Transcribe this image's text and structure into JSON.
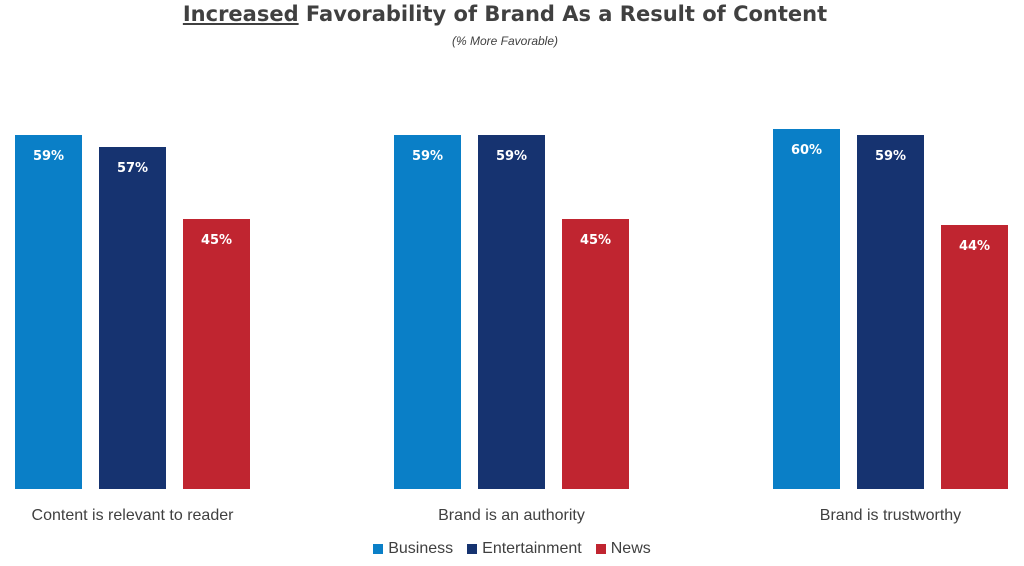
{
  "title": {
    "underlined": "Increased",
    "rest": " Favorability of Brand As a Result of Content"
  },
  "subtitle": "(% More Favorable)",
  "colors": {
    "Business": "#0a7fc7",
    "Entertainment": "#163370",
    "News": "#c02530"
  },
  "chart_data": {
    "type": "bar",
    "title": "Increased Favorability of Brand As a Result of Content",
    "subtitle": "(% More Favorable)",
    "categories": [
      "Content is relevant to reader",
      "Brand is an authority",
      "Brand is trustworthy"
    ],
    "series": [
      {
        "name": "Business",
        "values": [
          59,
          59,
          60
        ],
        "labels": [
          "59%",
          "59%",
          "60%"
        ]
      },
      {
        "name": "Entertainment",
        "values": [
          57,
          59,
          59
        ],
        "labels": [
          "57%",
          "59%",
          "59%"
        ]
      },
      {
        "name": "News",
        "values": [
          45,
          45,
          44
        ],
        "labels": [
          "45%",
          "45%",
          "44%"
        ]
      }
    ],
    "ylim": [
      0,
      70
    ],
    "grid": false,
    "legend": "bottom"
  }
}
